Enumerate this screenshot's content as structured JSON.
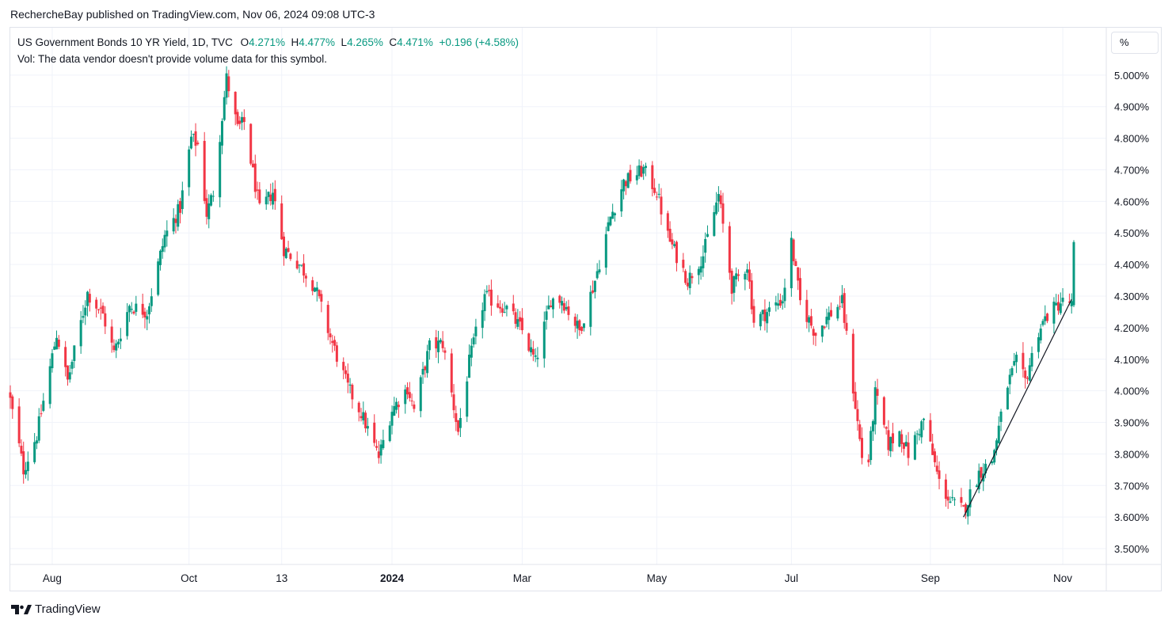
{
  "header": {
    "published_by": "RechercheBay published on TradingView.com, Nov 06, 2024 09:08 UTC-3"
  },
  "legend": {
    "symbol": "US Government Bonds 10 YR Yield, 1D, TVC",
    "open_label": "O",
    "open": "4.271%",
    "high_label": "H",
    "high": "4.477%",
    "low_label": "L",
    "low": "4.265%",
    "close_label": "C",
    "close": "4.471%",
    "change": "+0.196 (+4.58%)"
  },
  "volume_note": "Vol: The data vendor doesn't provide volume data for this symbol.",
  "scale_button": "%",
  "footer": {
    "brand": "TradingView"
  },
  "colors": {
    "up": "#089981",
    "down": "#f23645",
    "grid": "#f0f3fa",
    "text": "#131722"
  },
  "chart_data": {
    "type": "candlestick",
    "title": "US Government Bonds 10 YR Yield, 1D, TVC",
    "y_unit": "%",
    "ylim": [
      3.45,
      5.15
    ],
    "y_ticks": [
      3.5,
      3.6,
      3.7,
      3.8,
      3.9,
      4.0,
      4.1,
      4.2,
      4.3,
      4.4,
      4.5,
      4.6,
      4.7,
      4.8,
      4.9,
      5.0
    ],
    "y_tick_labels": [
      "3.500%",
      "3.600%",
      "3.700%",
      "3.800%",
      "3.900%",
      "4.000%",
      "4.100%",
      "4.200%",
      "4.300%",
      "4.400%",
      "4.500%",
      "4.600%",
      "4.700%",
      "4.800%",
      "4.900%",
      "5.000%"
    ],
    "x_ticks": [
      {
        "label": "Aug",
        "date": "2023-08-01",
        "bold": false
      },
      {
        "label": "Oct",
        "date": "2023-10-02",
        "bold": false
      },
      {
        "label": "13",
        "date": "2023-11-13",
        "bold": false
      },
      {
        "label": "2024",
        "date": "2024-01-02",
        "bold": true
      },
      {
        "label": "Mar",
        "date": "2024-03-01",
        "bold": false
      },
      {
        "label": "May",
        "date": "2024-05-01",
        "bold": false
      },
      {
        "label": "Jul",
        "date": "2024-07-01",
        "bold": false
      },
      {
        "label": "Sep",
        "date": "2024-09-02",
        "bold": false
      },
      {
        "label": "Nov",
        "date": "2024-11-01",
        "bold": false
      }
    ],
    "x_range": [
      "2023-07-13",
      "2024-11-06"
    ],
    "path_anchors": [
      [
        "2023-07-13",
        3.97
      ],
      [
        "2023-07-19",
        3.75
      ],
      [
        "2023-07-25",
        3.86
      ],
      [
        "2023-08-03",
        4.18
      ],
      [
        "2023-08-08",
        4.03
      ],
      [
        "2023-08-17",
        4.31
      ],
      [
        "2023-08-24",
        4.24
      ],
      [
        "2023-08-29",
        4.12
      ],
      [
        "2023-09-05",
        4.27
      ],
      [
        "2023-09-13",
        4.25
      ],
      [
        "2023-09-21",
        4.49
      ],
      [
        "2023-09-28",
        4.58
      ],
      [
        "2023-10-03",
        4.8
      ],
      [
        "2023-10-06",
        4.78
      ],
      [
        "2023-10-10",
        4.56
      ],
      [
        "2023-10-13",
        4.63
      ],
      [
        "2023-10-19",
        4.99
      ],
      [
        "2023-10-24",
        4.83
      ],
      [
        "2023-10-27",
        4.85
      ],
      [
        "2023-11-03",
        4.57
      ],
      [
        "2023-11-09",
        4.63
      ],
      [
        "2023-11-14",
        4.45
      ],
      [
        "2023-11-21",
        4.4
      ],
      [
        "2023-11-28",
        4.33
      ],
      [
        "2023-12-05",
        4.17
      ],
      [
        "2023-12-13",
        4.01
      ],
      [
        "2023-12-19",
        3.93
      ],
      [
        "2023-12-27",
        3.79
      ],
      [
        "2024-01-02",
        3.94
      ],
      [
        "2024-01-09",
        4.01
      ],
      [
        "2024-01-12",
        3.94
      ],
      [
        "2024-01-19",
        4.14
      ],
      [
        "2024-01-25",
        4.15
      ],
      [
        "2024-02-01",
        3.87
      ],
      [
        "2024-02-06",
        4.09
      ],
      [
        "2024-02-13",
        4.3
      ],
      [
        "2024-02-23",
        4.26
      ],
      [
        "2024-03-01",
        4.19
      ],
      [
        "2024-03-07",
        4.09
      ],
      [
        "2024-03-14",
        4.29
      ],
      [
        "2024-03-19",
        4.29
      ],
      [
        "2024-03-27",
        4.19
      ],
      [
        "2024-04-03",
        4.35
      ],
      [
        "2024-04-10",
        4.55
      ],
      [
        "2024-04-16",
        4.66
      ],
      [
        "2024-04-25",
        4.7
      ],
      [
        "2024-05-01",
        4.63
      ],
      [
        "2024-05-06",
        4.49
      ],
      [
        "2024-05-15",
        4.35
      ],
      [
        "2024-05-22",
        4.43
      ],
      [
        "2024-05-29",
        4.62
      ],
      [
        "2024-06-04",
        4.33
      ],
      [
        "2024-06-11",
        4.4
      ],
      [
        "2024-06-14",
        4.22
      ],
      [
        "2024-06-20",
        4.25
      ],
      [
        "2024-06-27",
        4.29
      ],
      [
        "2024-07-01",
        4.47
      ],
      [
        "2024-07-05",
        4.28
      ],
      [
        "2024-07-12",
        4.18
      ],
      [
        "2024-07-18",
        4.24
      ],
      [
        "2024-07-24",
        4.28
      ],
      [
        "2024-08-02",
        3.79
      ],
      [
        "2024-08-05",
        3.78
      ],
      [
        "2024-08-08",
        3.99
      ],
      [
        "2024-08-14",
        3.83
      ],
      [
        "2024-08-19",
        3.87
      ],
      [
        "2024-08-23",
        3.8
      ],
      [
        "2024-08-30",
        3.91
      ],
      [
        "2024-09-06",
        3.71
      ],
      [
        "2024-09-11",
        3.65
      ],
      [
        "2024-09-17",
        3.62
      ],
      [
        "2024-09-24",
        3.74
      ],
      [
        "2024-09-30",
        3.78
      ],
      [
        "2024-10-07",
        4.02
      ],
      [
        "2024-10-11",
        4.09
      ],
      [
        "2024-10-15",
        4.03
      ],
      [
        "2024-10-21",
        4.19
      ],
      [
        "2024-10-25",
        4.24
      ],
      [
        "2024-10-31",
        4.28
      ],
      [
        "2024-11-04",
        4.28
      ],
      [
        "2024-11-05",
        4.27
      ],
      [
        "2024-11-06",
        4.47
      ]
    ],
    "last_bar": {
      "date": "2024-11-06",
      "open": 4.271,
      "high": 4.477,
      "low": 4.265,
      "close": 4.471
    },
    "trendline": {
      "from": [
        "2024-09-17",
        3.6
      ],
      "to": [
        "2024-11-05",
        4.29
      ]
    }
  }
}
